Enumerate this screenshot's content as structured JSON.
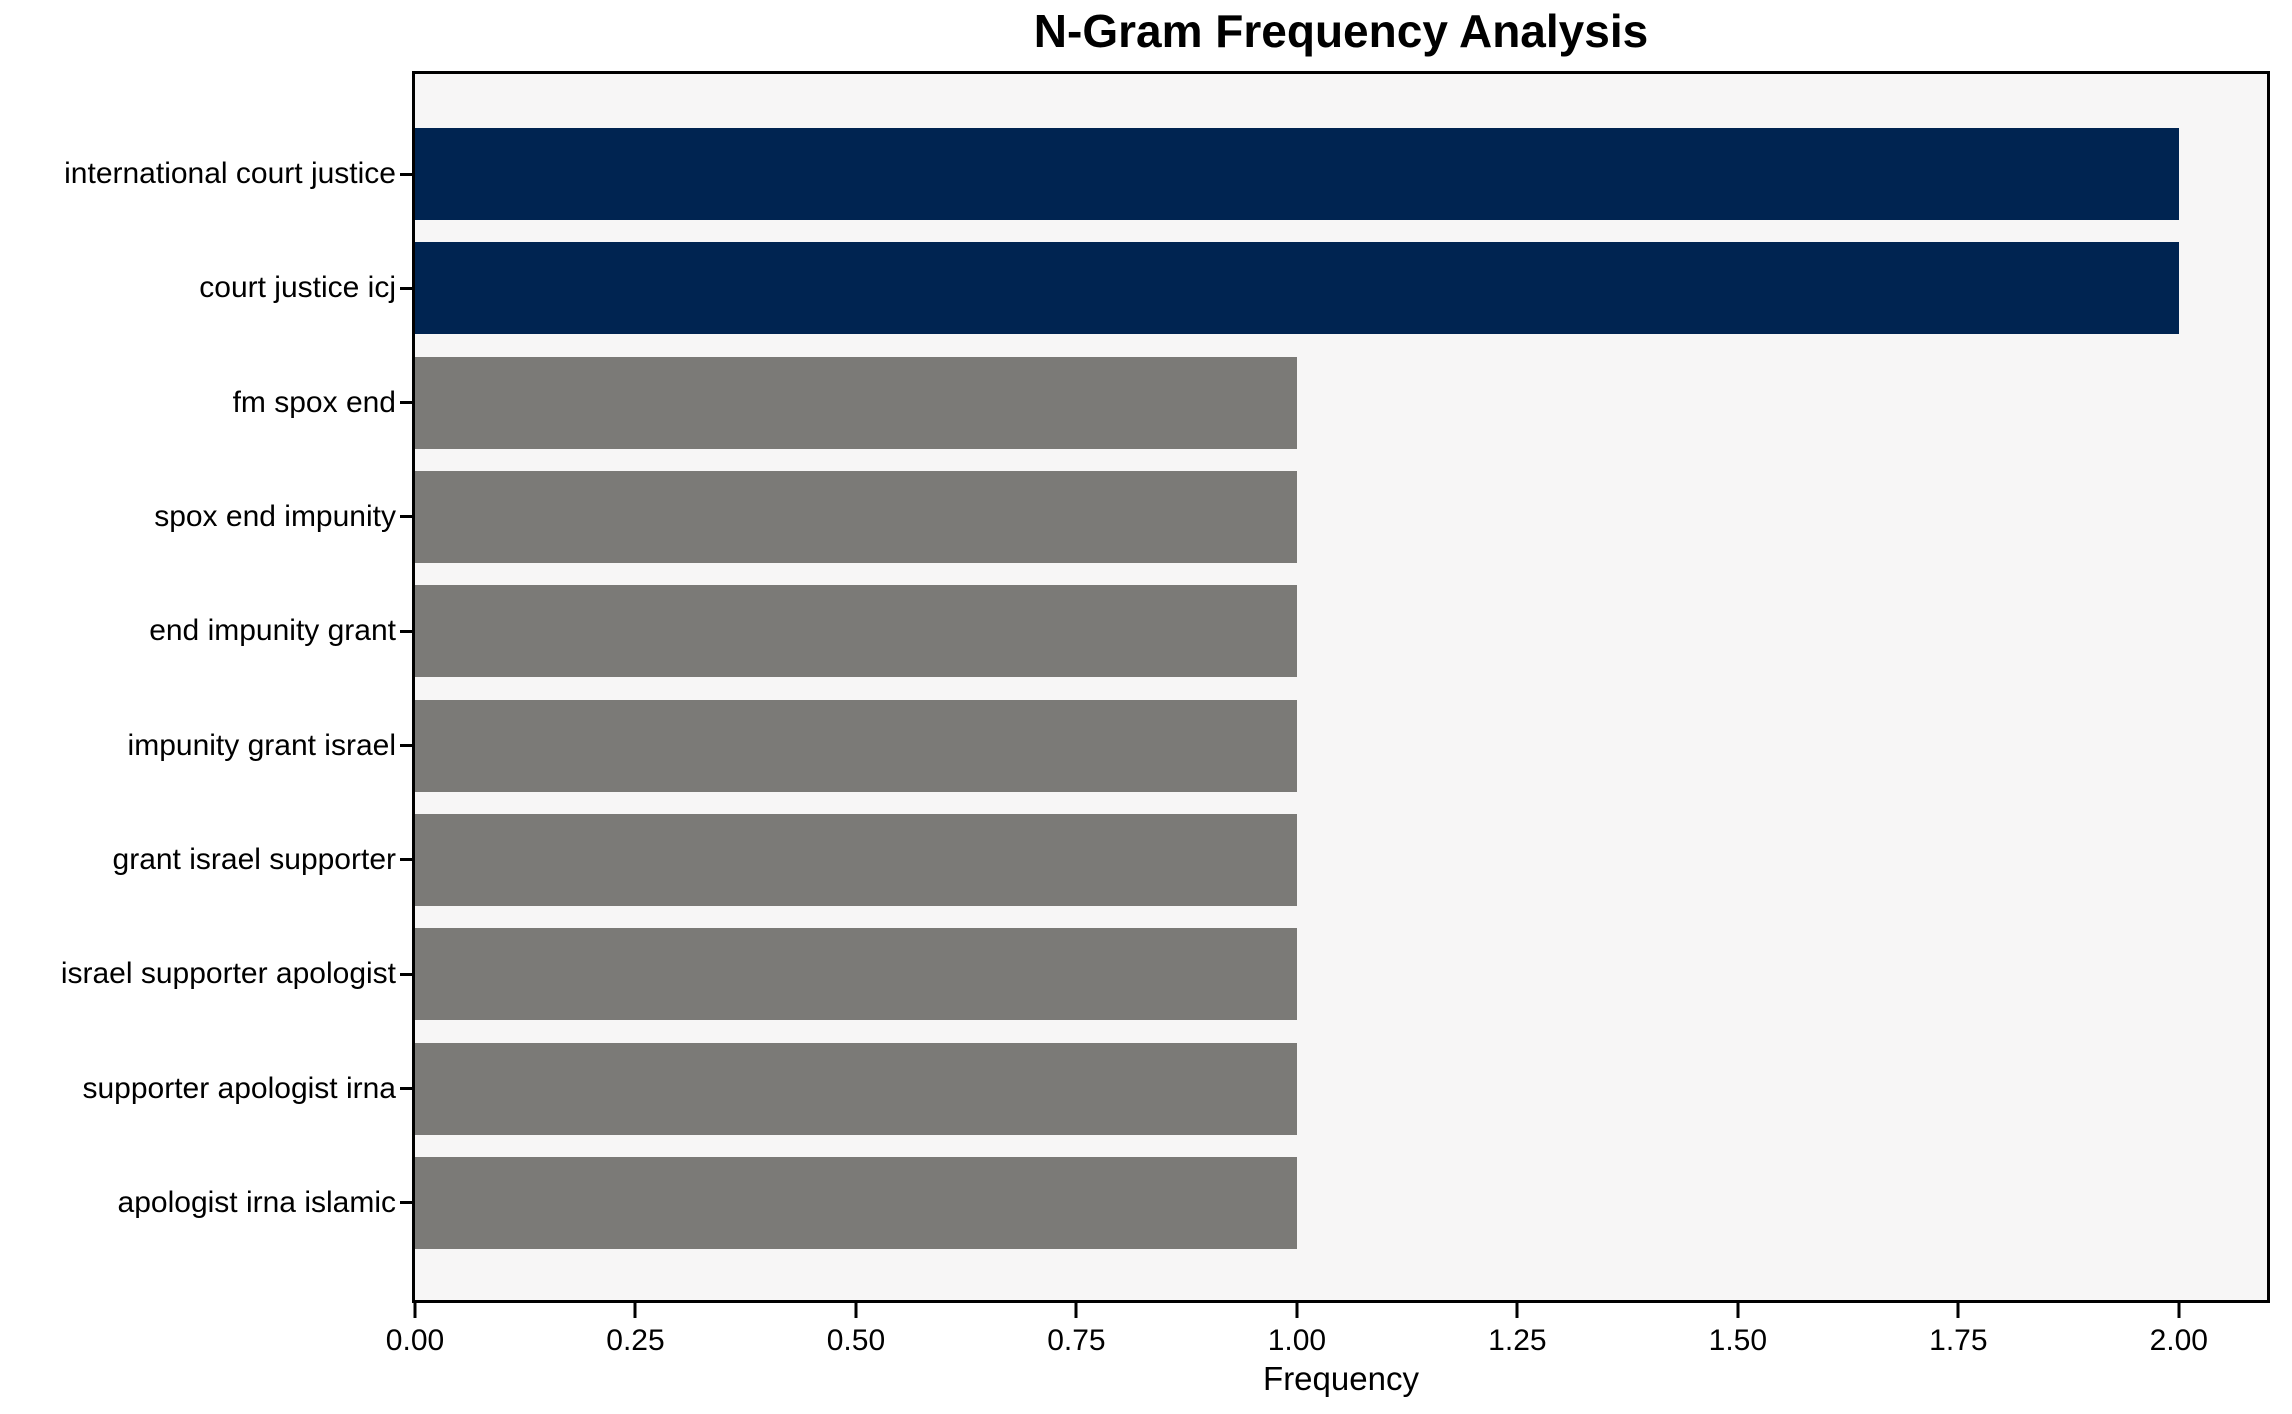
{
  "chart_data": {
    "type": "bar",
    "orientation": "horizontal",
    "title": "N-Gram Frequency Analysis",
    "xlabel": "Frequency",
    "ylabel": "",
    "categories": [
      "international court justice",
      "court justice icj",
      "fm spox end",
      "spox end impunity",
      "end impunity grant",
      "impunity grant israel",
      "grant israel supporter",
      "israel supporter apologist",
      "supporter apologist irna",
      "apologist irna islamic"
    ],
    "values": [
      2,
      2,
      1,
      1,
      1,
      1,
      1,
      1,
      1,
      1
    ],
    "bar_colors": [
      "#002451",
      "#002451",
      "#7b7a77",
      "#7b7a77",
      "#7b7a77",
      "#7b7a77",
      "#7b7a77",
      "#7b7a77",
      "#7b7a77",
      "#7b7a77"
    ],
    "xlim": [
      0,
      2.1
    ],
    "x_tick_values": [
      0,
      0.25,
      0.5,
      0.75,
      1.0,
      1.25,
      1.5,
      1.75,
      2.0
    ],
    "x_tick_labels": [
      "0.00",
      "0.25",
      "0.50",
      "0.75",
      "1.00",
      "1.25",
      "1.50",
      "1.75",
      "2.00"
    ],
    "grid": false,
    "legend": false,
    "colors": {
      "highlight_bar": "#002451",
      "default_bar": "#7b7a77",
      "plot_background": "#f7f6f6",
      "figure_background": "#ffffff",
      "spine": "#000000",
      "text": "#000000"
    }
  }
}
